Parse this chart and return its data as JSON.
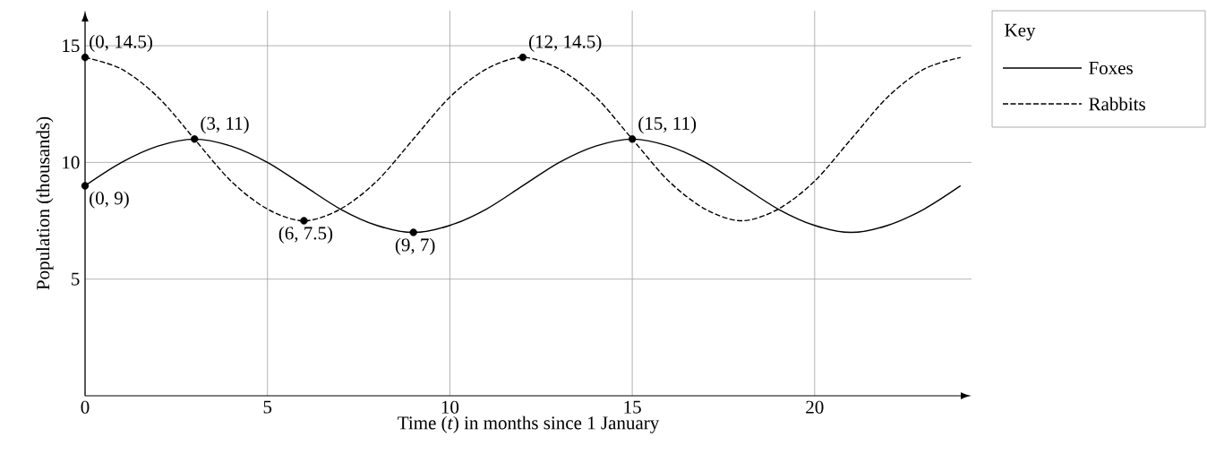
{
  "chart_data": {
    "type": "line",
    "xlabel": "Time (*t*) in months since 1 January",
    "ylabel": "Population (thousands)",
    "legend_title": "Key",
    "legend": "top right",
    "grid": true,
    "xlim": [
      0,
      24.3
    ],
    "ylim": [
      0,
      16.5
    ],
    "xticks": [
      0,
      5,
      10,
      15,
      20
    ],
    "yticks": [
      5,
      10,
      15
    ],
    "series": [
      {
        "name": "Foxes",
        "color": "#000000",
        "line_style": "solid",
        "marker": "none",
        "x": [
          0,
          1,
          2,
          3,
          4,
          5,
          6,
          7,
          8,
          9,
          10,
          11,
          12,
          13,
          14,
          15,
          16,
          17,
          18,
          19,
          20,
          21,
          22,
          23,
          24
        ],
        "values": [
          9,
          10,
          10.7,
          11,
          10.7,
          10,
          9,
          8,
          7.3,
          7,
          7.3,
          8,
          9,
          10,
          10.7,
          11,
          10.7,
          10,
          9,
          8,
          7.3,
          7,
          7.3,
          8,
          9
        ]
      },
      {
        "name": "Rabbits",
        "color": "#000000",
        "line_style": "dashed",
        "marker": "none",
        "x": [
          0,
          1,
          2,
          3,
          4,
          5,
          6,
          7,
          8,
          9,
          10,
          11,
          12,
          13,
          14,
          15,
          16,
          17,
          18,
          19,
          20,
          21,
          22,
          23,
          24
        ],
        "values": [
          14.5,
          14.0,
          12.8,
          11,
          9.2,
          8.0,
          7.5,
          8.0,
          9.2,
          11,
          12.8,
          14.0,
          14.5,
          14.0,
          12.8,
          11,
          9.2,
          8.0,
          7.5,
          8.0,
          9.2,
          11,
          12.8,
          14.0,
          14.5
        ]
      },
      {
        "type": "scatter",
        "color": "#000000",
        "marker": "circle",
        "x": [
          0,
          0,
          3,
          6,
          9,
          12,
          15
        ],
        "values": [
          14.5,
          9,
          11,
          7.5,
          7,
          14.5,
          11
        ]
      }
    ],
    "annotations": [
      {
        "text": "(0, 14.5)",
        "x": 0,
        "y": 14.5
      },
      {
        "text": "(0, 9)",
        "x": 0,
        "y": 9
      },
      {
        "text": "(3, 11)",
        "x": 3,
        "y": 11
      },
      {
        "text": "(6, 7.5)",
        "x": 6,
        "y": 7.5
      },
      {
        "text": "(9, 7)",
        "x": 9,
        "y": 7
      },
      {
        "text": "(12, 14.5)",
        "x": 12,
        "y": 14.5
      },
      {
        "text": "(15, 11)",
        "x": 15,
        "y": 11
      }
    ]
  }
}
